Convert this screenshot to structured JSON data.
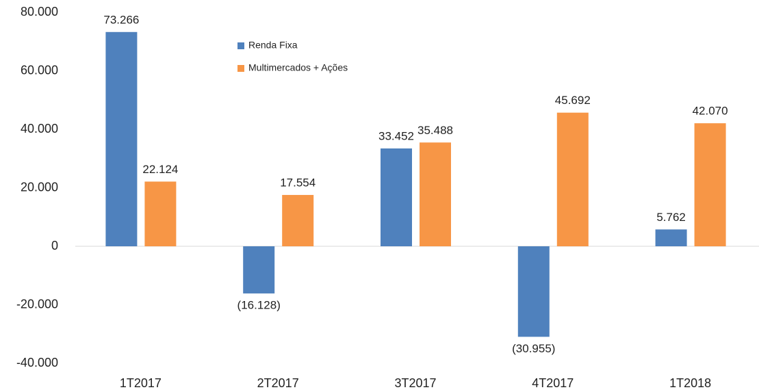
{
  "chart_data": {
    "type": "bar",
    "categories": [
      "1T2017",
      "2T2017",
      "3T2017",
      "4T2017",
      "1T2018"
    ],
    "series": [
      {
        "name": "Renda Fixa",
        "color": "#4f81bd",
        "values": [
          73266,
          -16128,
          33452,
          -30955,
          5762
        ],
        "value_labels": [
          "73.266",
          "(16.128)",
          "33.452",
          "(30.955)",
          "5.762"
        ]
      },
      {
        "name": "Multimercados + Ações",
        "color": "#f79646",
        "values": [
          22124,
          17554,
          35488,
          45692,
          42070
        ],
        "value_labels": [
          "22.124",
          "17.554",
          "35.488",
          "45.692",
          "42.070"
        ]
      }
    ],
    "ylim": [
      -40000,
      80000
    ],
    "yticks": [
      {
        "value": -40000,
        "label": "-40.000"
      },
      {
        "value": -20000,
        "label": "-20.000"
      },
      0,
      {
        "value": 20000,
        "label": "20.000"
      },
      {
        "value": 40000,
        "label": "40.000"
      },
      {
        "value": 60000,
        "label": "60.000"
      },
      {
        "value": 80000,
        "label": "80.000"
      }
    ],
    "legend": "top"
  }
}
